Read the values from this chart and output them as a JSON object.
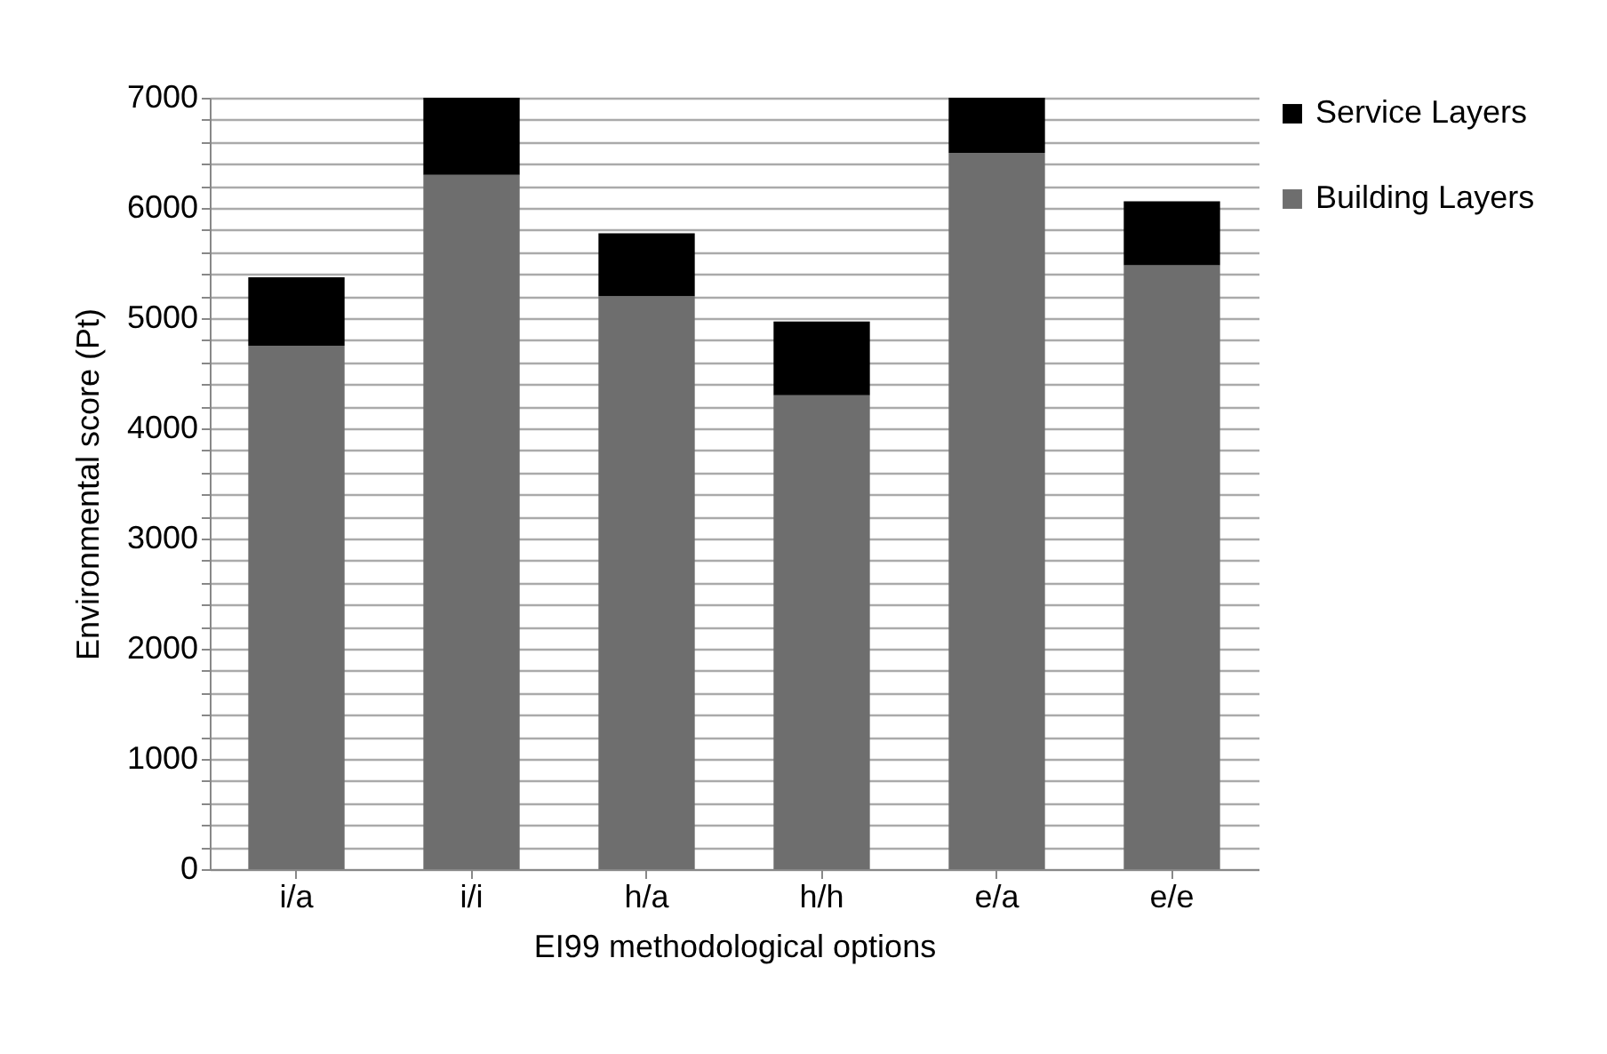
{
  "chart_data": {
    "type": "bar",
    "stacked": true,
    "xlabel": "EI99 methodological options",
    "ylabel": "Environmental score (Pt)",
    "categories": [
      "i/a",
      "i/i",
      "h/a",
      "h/h",
      "e/a",
      "e/e"
    ],
    "series": [
      {
        "name": "Building Layers",
        "color": "#6e6e6e",
        "values": [
          4750,
          6300,
          5200,
          4300,
          6500,
          5480
        ]
      },
      {
        "name": "Service Layers",
        "color": "#000000",
        "values": [
          620,
          700,
          570,
          670,
          500,
          580
        ]
      }
    ],
    "ylim": [
      0,
      7000
    ],
    "yticks": [
      0,
      {
        "value": 200,
        "label": null
      },
      {
        "value": 400,
        "label": null
      },
      {
        "value": 600,
        "label": null
      },
      {
        "value": 800,
        "label": null
      },
      1000,
      {
        "value": 1200,
        "label": null
      },
      {
        "value": 1400,
        "label": null
      },
      {
        "value": 1600,
        "label": null
      },
      {
        "value": 1800,
        "label": null
      },
      2000,
      {
        "value": 2200,
        "label": null
      },
      {
        "value": 2400,
        "label": null
      },
      {
        "value": 2600,
        "label": null
      },
      {
        "value": 2800,
        "label": null
      },
      3000,
      {
        "value": 3200,
        "label": null
      },
      {
        "value": 3400,
        "label": null
      },
      {
        "value": 3600,
        "label": null
      },
      {
        "value": 3800,
        "label": null
      },
      4000,
      {
        "value": 4200,
        "label": null
      },
      {
        "value": 4400,
        "label": null
      },
      {
        "value": 4600,
        "label": null
      },
      {
        "value": 4800,
        "label": null
      },
      5000,
      {
        "value": 5200,
        "label": null
      },
      {
        "value": 5400,
        "label": null
      },
      {
        "value": 5600,
        "label": null
      },
      {
        "value": 5800,
        "label": null
      },
      6000,
      {
        "value": 6200,
        "label": null
      },
      {
        "value": 6400,
        "label": null
      },
      {
        "value": 6600,
        "label": null
      },
      {
        "value": 6800,
        "label": null
      },
      7000
    ],
    "grid": "y",
    "legend": "right"
  }
}
